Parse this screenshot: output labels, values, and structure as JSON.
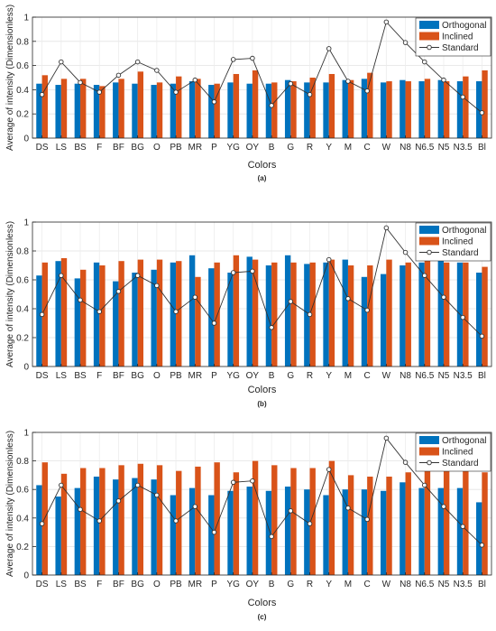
{
  "chart_data": [
    {
      "type": "bar",
      "panel_label": "(a)",
      "xlabel": "Colors",
      "ylabel": "Average of intensity (Dimensionless)",
      "ylim": [
        0,
        1
      ],
      "yticks": [
        "0",
        "0.2",
        "0.4",
        "0.6",
        "0.8",
        "1"
      ],
      "grid": true,
      "legend_position": "top-right",
      "categories": [
        "DS",
        "LS",
        "BS",
        "F",
        "BF",
        "BG",
        "O",
        "PB",
        "MR",
        "P",
        "YG",
        "OY",
        "B",
        "G",
        "R",
        "Y",
        "M",
        "C",
        "W",
        "N8",
        "N6.5",
        "N5",
        "N3.5",
        "Bl"
      ],
      "series": [
        {
          "name": "Orthogonal",
          "kind": "bar",
          "color": "#0072BD",
          "values": [
            0.45,
            0.44,
            0.45,
            0.44,
            0.46,
            0.45,
            0.44,
            0.45,
            0.47,
            0.44,
            0.46,
            0.45,
            0.45,
            0.48,
            0.46,
            0.46,
            0.48,
            0.49,
            0.46,
            0.48,
            0.47,
            0.48,
            0.47,
            0.47
          ]
        },
        {
          "name": "Inclined",
          "kind": "bar",
          "color": "#D95319",
          "values": [
            0.52,
            0.49,
            0.49,
            0.43,
            0.49,
            0.55,
            0.46,
            0.51,
            0.49,
            0.45,
            0.53,
            0.56,
            0.46,
            0.47,
            0.5,
            0.53,
            0.48,
            0.54,
            0.47,
            0.47,
            0.49,
            0.47,
            0.51,
            0.56
          ]
        },
        {
          "name": "Standard",
          "kind": "line",
          "color": "#333333",
          "values": [
            0.36,
            0.63,
            0.46,
            0.38,
            0.52,
            0.63,
            0.56,
            0.38,
            0.48,
            0.3,
            0.65,
            0.66,
            0.27,
            0.45,
            0.36,
            0.74,
            0.47,
            0.39,
            0.96,
            0.79,
            0.63,
            0.48,
            0.34,
            0.21
          ]
        }
      ]
    },
    {
      "type": "bar",
      "panel_label": "(b)",
      "xlabel": "Colors",
      "ylabel": "Average of intensity (Dimensionless)",
      "ylim": [
        0,
        1
      ],
      "yticks": [
        "0",
        "0.2",
        "0.4",
        "0.6",
        "0.8",
        "1"
      ],
      "grid": true,
      "legend_position": "top-right",
      "categories": [
        "DS",
        "LS",
        "BS",
        "F",
        "BF",
        "BG",
        "O",
        "PB",
        "MR",
        "P",
        "YG",
        "OY",
        "B",
        "G",
        "R",
        "Y",
        "M",
        "C",
        "W",
        "N8",
        "N6.5",
        "N5",
        "N3.5",
        "Bl"
      ],
      "series": [
        {
          "name": "Orthogonal",
          "kind": "bar",
          "color": "#0072BD",
          "values": [
            0.63,
            0.73,
            0.61,
            0.72,
            0.59,
            0.65,
            0.67,
            0.72,
            0.77,
            0.68,
            0.65,
            0.76,
            0.7,
            0.77,
            0.71,
            0.72,
            0.74,
            0.62,
            0.64,
            0.7,
            0.72,
            0.76,
            0.72,
            0.65
          ]
        },
        {
          "name": "Inclined",
          "kind": "bar",
          "color": "#D95319",
          "values": [
            0.72,
            0.75,
            0.67,
            0.7,
            0.73,
            0.74,
            0.74,
            0.73,
            0.62,
            0.72,
            0.77,
            0.74,
            0.72,
            0.72,
            0.72,
            0.74,
            0.7,
            0.7,
            0.74,
            0.72,
            0.79,
            0.72,
            0.72,
            0.69
          ]
        },
        {
          "name": "Standard",
          "kind": "line",
          "color": "#333333",
          "values": [
            0.36,
            0.63,
            0.46,
            0.38,
            0.52,
            0.63,
            0.56,
            0.38,
            0.48,
            0.3,
            0.65,
            0.66,
            0.27,
            0.45,
            0.36,
            0.74,
            0.47,
            0.39,
            0.96,
            0.79,
            0.63,
            0.48,
            0.34,
            0.21
          ]
        }
      ]
    },
    {
      "type": "bar",
      "panel_label": "(c)",
      "xlabel": "Colors",
      "ylabel": "Average of intensity (Dimensionless)",
      "ylim": [
        0,
        1
      ],
      "yticks": [
        "0",
        "0.2",
        "0.4",
        "0.6",
        "0.8",
        "1"
      ],
      "grid": true,
      "legend_position": "top-right",
      "categories": [
        "DS",
        "LS",
        "BS",
        "F",
        "BF",
        "BG",
        "O",
        "PB",
        "MR",
        "P",
        "YG",
        "OY",
        "B",
        "G",
        "R",
        "Y",
        "M",
        "C",
        "W",
        "N8",
        "N6.5",
        "N5",
        "N3.5",
        "Bl"
      ],
      "series": [
        {
          "name": "Orthogonal",
          "kind": "bar",
          "color": "#0072BD",
          "values": [
            0.63,
            0.55,
            0.61,
            0.69,
            0.67,
            0.68,
            0.67,
            0.56,
            0.61,
            0.56,
            0.59,
            0.62,
            0.59,
            0.62,
            0.6,
            0.56,
            0.6,
            0.6,
            0.59,
            0.65,
            0.61,
            0.61,
            0.61,
            0.51
          ]
        },
        {
          "name": "Inclined",
          "kind": "bar",
          "color": "#D95319",
          "values": [
            0.79,
            0.71,
            0.75,
            0.75,
            0.77,
            0.78,
            0.77,
            0.73,
            0.76,
            0.79,
            0.72,
            0.8,
            0.77,
            0.75,
            0.75,
            0.8,
            0.7,
            0.69,
            0.69,
            0.72,
            0.77,
            0.83,
            0.78,
            0.72
          ]
        },
        {
          "name": "Standard",
          "kind": "line",
          "color": "#333333",
          "values": [
            0.36,
            0.63,
            0.46,
            0.38,
            0.52,
            0.63,
            0.56,
            0.38,
            0.48,
            0.3,
            0.65,
            0.66,
            0.27,
            0.45,
            0.36,
            0.74,
            0.47,
            0.39,
            0.96,
            0.79,
            0.63,
            0.48,
            0.34,
            0.21
          ]
        }
      ]
    }
  ]
}
